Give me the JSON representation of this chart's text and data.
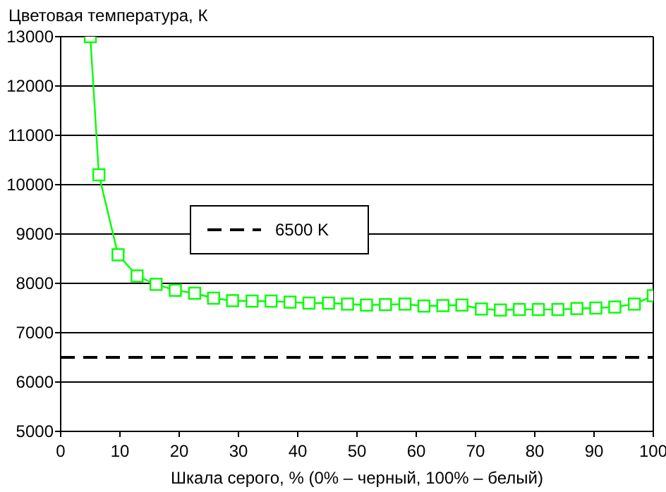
{
  "chart_data": {
    "type": "line",
    "ylabel": "Цветовая температура, К",
    "xlabel": "Шкала серого, % (0% – черный, 100% – белый)",
    "xlim": [
      0,
      100
    ],
    "xticks": [
      0,
      10,
      20,
      30,
      40,
      50,
      60,
      70,
      80,
      90,
      100
    ],
    "ylim": [
      5000,
      13000
    ],
    "yticks": [
      5000,
      6000,
      7000,
      8000,
      9000,
      10000,
      11000,
      12000,
      13000
    ],
    "grid": "y",
    "legend": "center",
    "marker": "square",
    "line_style": "solid",
    "series": [
      {
        "color": "#00ff00",
        "x": [
          5,
          6.45,
          9.68,
          12.9,
          16.1,
          19.35,
          22.6,
          25.8,
          29,
          32.3,
          35.5,
          38.7,
          41.9,
          45.2,
          48.4,
          51.6,
          54.8,
          58.1,
          61.3,
          64.5,
          67.7,
          71,
          74.2,
          77.4,
          80.6,
          83.9,
          87.1,
          90.3,
          93.5,
          96.8,
          100
        ],
        "values": [
          13000,
          10200,
          8580,
          8150,
          7980,
          7860,
          7800,
          7700,
          7650,
          7640,
          7640,
          7620,
          7600,
          7600,
          7580,
          7560,
          7570,
          7580,
          7540,
          7550,
          7560,
          7480,
          7460,
          7470,
          7470,
          7470,
          7490,
          7500,
          7520,
          7580,
          7750
        ]
      }
    ],
    "ref_lines": [
      {
        "axis": "y",
        "value": 6500,
        "label": "6500 K",
        "color": "#000000",
        "line_style": "dashed"
      }
    ]
  }
}
